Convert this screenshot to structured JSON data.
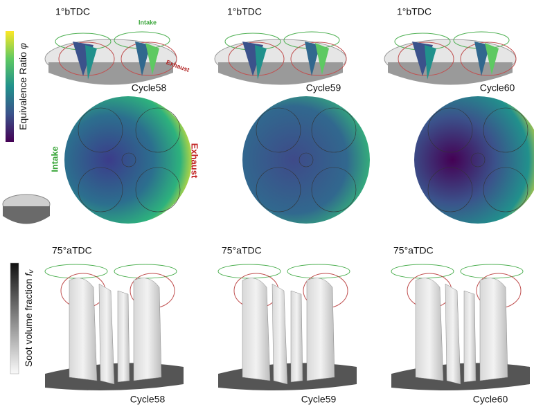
{
  "colorbar_top": {
    "label": "Equivalence Ratio",
    "symbol": "φ"
  },
  "top_row": {
    "intake_label": "Intake",
    "exhaust_label": "Exhaust",
    "panels": [
      {
        "crank_angle": "1°bTDC",
        "cycle": "Cycle58"
      },
      {
        "crank_angle": "1°bTDC",
        "cycle": "Cycle59"
      },
      {
        "crank_angle": "1°bTDC",
        "cycle": "Cycle60"
      }
    ]
  },
  "disc_labels": {
    "intake": "Intake",
    "exhaust": "Exhaust"
  },
  "colorbar_bottom": {
    "label": "Soot volume fraction",
    "symbol": "f",
    "subscript": "v"
  },
  "bottom_row": {
    "panels": [
      {
        "crank_angle": "75°aTDC",
        "cycle": "Cycle58"
      },
      {
        "crank_angle": "75°aTDC",
        "cycle": "Cycle59"
      },
      {
        "crank_angle": "75°aTDC",
        "cycle": "Cycle60"
      }
    ]
  }
}
